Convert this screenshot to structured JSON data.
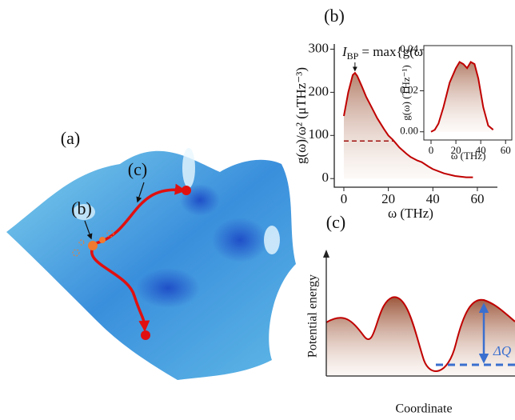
{
  "panels": {
    "a": "(a)",
    "b": "(b)",
    "c": "(c)"
  },
  "landscape": {
    "label_b": "(b)",
    "label_c": "(c)"
  },
  "schematic": {
    "ylabel": "Potential energy",
    "xlabel": "Coordinate",
    "delta_label": "ΔQ"
  },
  "chart_data": [
    {
      "type": "line",
      "xlabel": "ω (THz)",
      "ylabel": "g(ω)/ω² (μTHz⁻³)",
      "annotation": {
        "symbol": "I",
        "subscript": "BP",
        "text": "= max{g(ω)/ω²}"
      },
      "x": [
        0,
        2,
        4,
        5,
        6,
        8,
        10,
        12,
        15,
        18,
        20,
        22,
        25,
        28,
        30,
        33,
        35,
        38,
        40,
        45,
        50,
        55,
        58
      ],
      "series": [
        {
          "color": "#c00000",
          "values": [
            145,
            200,
            240,
            245,
            238,
            215,
            190,
            170,
            140,
            115,
            100,
            90,
            72,
            58,
            50,
            42,
            38,
            28,
            22,
            12,
            6,
            3,
            3
          ]
        }
      ],
      "xlim": [
        -4.3,
        69
      ],
      "ylim": [
        -20,
        312
      ],
      "xticks": [
        0,
        20,
        40,
        60
      ],
      "yticks": [
        0,
        100,
        200,
        300
      ],
      "area_fill": true,
      "reference_line_y": 87
    },
    {
      "type": "line",
      "xlabel": "ω (THz)",
      "ylabel": "g(ω) (THz⁻¹)",
      "x": [
        0,
        3,
        6,
        10,
        15,
        20,
        23,
        26,
        29,
        32,
        35,
        38,
        42,
        46,
        50
      ],
      "series": [
        {
          "color": "#c00000",
          "values": [
            0,
            0.001,
            0.004,
            0.012,
            0.024,
            0.031,
            0.034,
            0.033,
            0.031,
            0.034,
            0.033,
            0.026,
            0.012,
            0.003,
            0.001
          ]
        }
      ],
      "xlim": [
        -5.8,
        65
      ],
      "ylim": [
        -0.004,
        0.042
      ],
      "xticks": [
        0,
        20,
        40,
        60
      ],
      "yticks": [
        {
          "value": 0,
          "label": "0.00"
        },
        {
          "value": 0.02,
          "label": "0.02"
        },
        {
          "value": 0.04,
          "label": "0.04"
        }
      ],
      "area_fill": true
    }
  ]
}
